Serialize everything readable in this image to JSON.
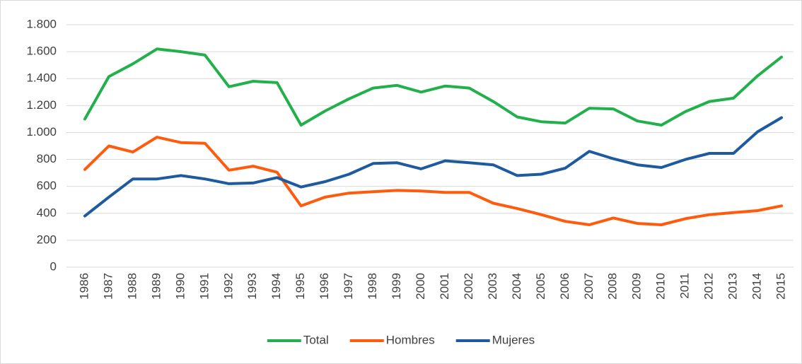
{
  "chart_data": {
    "type": "line",
    "categories": [
      "1986",
      "1987",
      "1988",
      "1989",
      "1990",
      "1991",
      "1992",
      "1993",
      "1994",
      "1995",
      "1996",
      "1997",
      "1998",
      "1999",
      "2000",
      "2001",
      "2002",
      "2003",
      "2004",
      "2005",
      "2006",
      "2007",
      "2008",
      "2009",
      "2010",
      "2011",
      "2012",
      "2013",
      "2014",
      "2015"
    ],
    "series": [
      {
        "name": "Total",
        "color": "#21b04b",
        "values": [
          1100,
          1415,
          1510,
          1620,
          1600,
          1575,
          1340,
          1380,
          1370,
          1055,
          1160,
          1250,
          1330,
          1350,
          1300,
          1345,
          1330,
          1230,
          1115,
          1080,
          1070,
          1180,
          1175,
          1085,
          1055,
          1155,
          1230,
          1255,
          1420,
          1560
        ]
      },
      {
        "name": "Hombres",
        "color": "#fe5b0c",
        "values": [
          725,
          900,
          855,
          965,
          925,
          920,
          720,
          750,
          705,
          455,
          520,
          550,
          560,
          570,
          565,
          555,
          555,
          475,
          435,
          390,
          340,
          315,
          365,
          325,
          315,
          360,
          390,
          405,
          420,
          455
        ]
      },
      {
        "name": "Mujeres",
        "color": "#1e5aa0",
        "values": [
          380,
          520,
          655,
          655,
          680,
          655,
          620,
          625,
          665,
          595,
          635,
          690,
          770,
          775,
          730,
          790,
          775,
          760,
          680,
          690,
          735,
          860,
          805,
          760,
          740,
          800,
          845,
          845,
          1005,
          1110
        ]
      }
    ],
    "ylim": [
      0,
      1800
    ],
    "yticks": [
      0,
      200,
      400,
      600,
      800,
      {
        "value": 1000,
        "label": "1.000"
      },
      {
        "value": 1200,
        "label": "1.200"
      },
      {
        "value": 1400,
        "label": "1.400"
      },
      {
        "value": 1600,
        "label": "1.600"
      },
      {
        "value": 1800,
        "label": "1.800"
      }
    ],
    "grid": true,
    "legend": "bottom"
  }
}
